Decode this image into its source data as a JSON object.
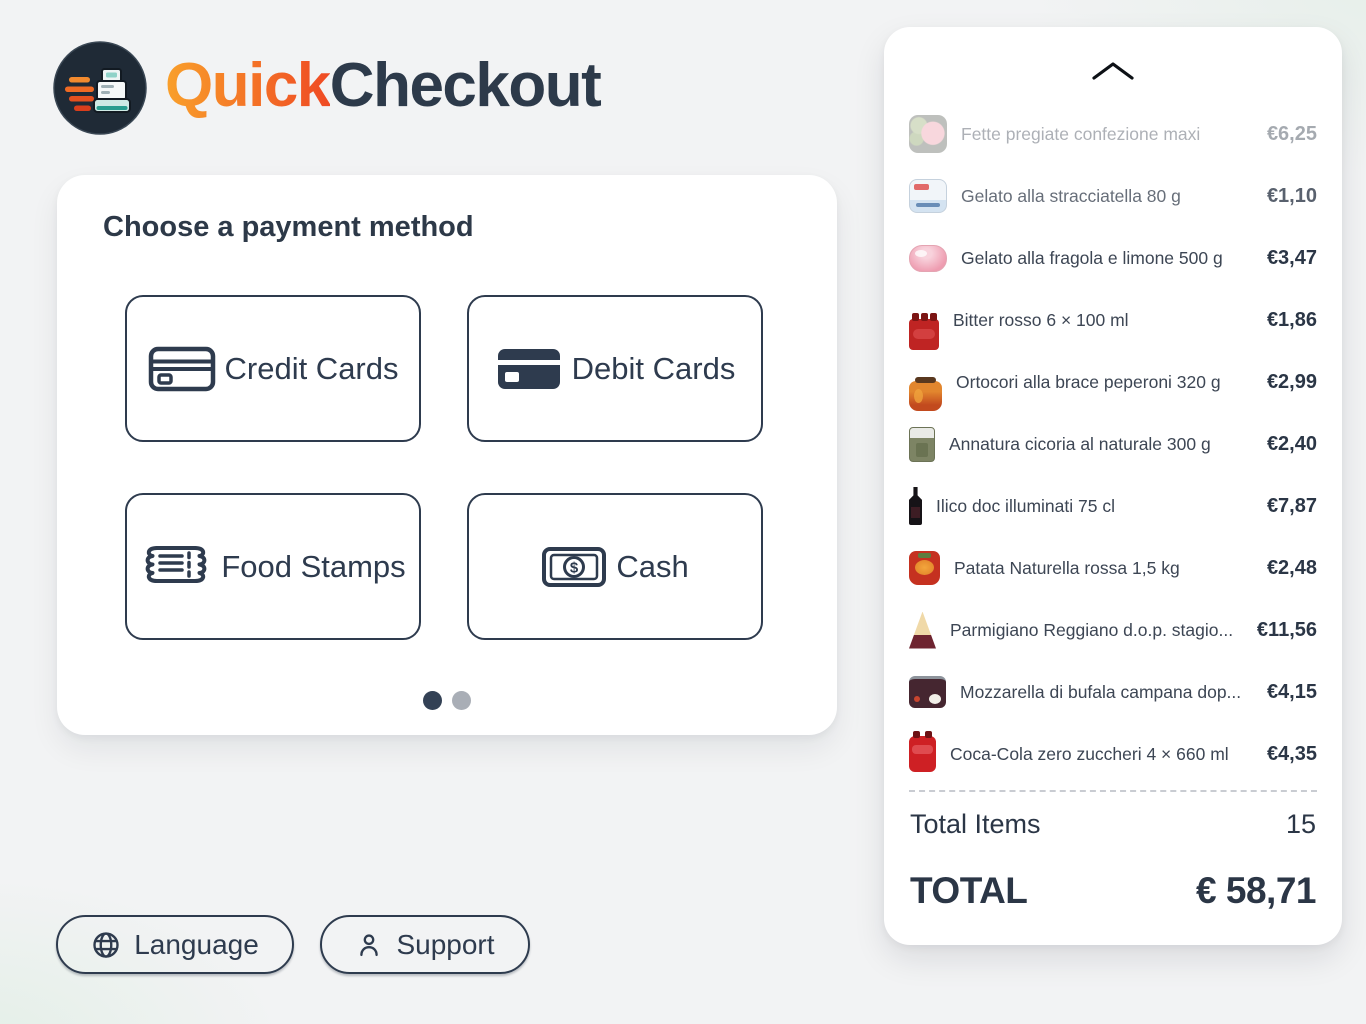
{
  "header": {
    "brand_primary": "Quick",
    "brand_secondary": "Checkout"
  },
  "payment": {
    "heading": "Choose a payment method",
    "methods": [
      {
        "label": "Credit Cards",
        "icon": "credit-card-outline-icon"
      },
      {
        "label": "Debit Cards",
        "icon": "credit-card-filled-icon"
      },
      {
        "label": "Food Stamps",
        "icon": "food-stamps-ticket-icon"
      },
      {
        "label": "Cash",
        "icon": "cash-banknote-icon"
      }
    ],
    "carousel": {
      "dot_count": 2,
      "active_index": 0
    }
  },
  "cart": {
    "scroll_up_icon": "chevron-up-icon",
    "items": [
      {
        "name": "Fette pregiate confezione maxi",
        "price": "€6,25",
        "fade": 0.42,
        "thumb": "meat-tray"
      },
      {
        "name": "Gelato alla stracciatella 80 g",
        "price": "€1,10",
        "fade": 0.78,
        "thumb": "gelato-box"
      },
      {
        "name": "Gelato alla fragola e limone 500 g",
        "price": "€3,47",
        "fade": 1,
        "thumb": "gelato-tub"
      },
      {
        "name": "Bitter rosso 6 × 100 ml",
        "price": "€1,86",
        "fade": 1,
        "thumb": "bitter-pack"
      },
      {
        "name": "Ortocori alla brace peperoni 320 g",
        "price": "€2,99",
        "fade": 1,
        "thumb": "pepper-jar"
      },
      {
        "name": "Annatura cicoria al naturale 300 g",
        "price": "€2,40",
        "fade": 1,
        "thumb": "cicoria-pack"
      },
      {
        "name": "Ilico doc illuminati 75 cl",
        "price": "€7,87",
        "fade": 1,
        "thumb": "wine-bottle"
      },
      {
        "name": "Patata Naturella rossa 1,5 kg",
        "price": "€2,48",
        "fade": 1,
        "thumb": "potato-bag"
      },
      {
        "name": "Parmigiano Reggiano d.o.p. stagio...",
        "price": "€11,56",
        "fade": 1,
        "thumb": "cheese-wedge"
      },
      {
        "name": "Mozzarella di bufala campana dop...",
        "price": "€4,15",
        "fade": 1,
        "thumb": "mozzarella-tub"
      },
      {
        "name": "Coca-Cola zero zuccheri 4 × 660 ml",
        "price": "€4,35",
        "fade": 1,
        "thumb": "cola-pack"
      }
    ],
    "total_items_label": "Total Items",
    "total_items_value": "15",
    "total_label": "TOTAL",
    "total_value": "€ 58,71"
  },
  "footer": {
    "language": {
      "label": "Language",
      "icon": "globe-icon"
    },
    "support": {
      "label": "Support",
      "icon": "person-icon"
    }
  },
  "colors": {
    "brand_gradient_start": "#F9A02B",
    "brand_gradient_end": "#EF4A23",
    "brand_dark": "#2D3A4A",
    "outline_navy": "#2E3B4E",
    "active_dot": "#334155",
    "inactive_dot": "#A9AEB6",
    "background": "#F2F3F4"
  }
}
